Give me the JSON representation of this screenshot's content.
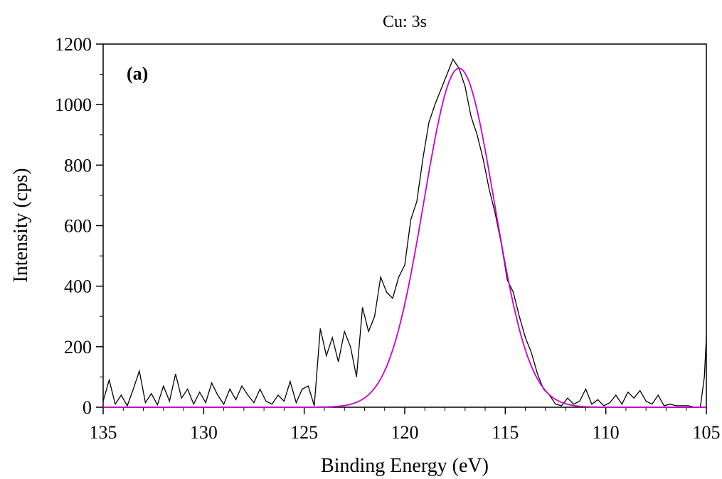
{
  "chart_data": {
    "type": "line",
    "title": "Cu: 3s",
    "xlabel": "Binding Energy (eV)",
    "ylabel": "Intensity (cps)",
    "panel_label": "(a)",
    "xlim": [
      135,
      105
    ],
    "ylim": [
      0,
      1200
    ],
    "x_reversed": true,
    "x_ticks": [
      135,
      130,
      125,
      120,
      115,
      110,
      105
    ],
    "y_ticks": [
      0,
      200,
      400,
      600,
      800,
      1000,
      1200
    ],
    "x_tick_labels": [
      "135",
      "130",
      "125",
      "120",
      "115",
      "110",
      "105"
    ],
    "y_tick_labels": [
      "0",
      "200",
      "400",
      "600",
      "800",
      "1000",
      "1200"
    ],
    "grid": false,
    "series": [
      {
        "color": "#000000",
        "x": [
          135.0,
          134.7,
          134.4,
          134.1,
          133.8,
          133.5,
          133.2,
          132.9,
          132.6,
          132.3,
          132.0,
          131.7,
          131.4,
          131.1,
          130.8,
          130.5,
          130.2,
          129.9,
          129.6,
          129.3,
          129.0,
          128.7,
          128.4,
          128.1,
          127.8,
          127.5,
          127.2,
          126.9,
          126.6,
          126.3,
          126.0,
          125.7,
          125.4,
          125.1,
          124.8,
          124.5,
          124.2,
          123.9,
          123.6,
          123.3,
          123.0,
          122.7,
          122.4,
          122.1,
          121.8,
          121.5,
          121.2,
          120.9,
          120.6,
          120.3,
          120.0,
          119.7,
          119.4,
          119.1,
          118.8,
          118.5,
          118.2,
          117.9,
          117.6,
          117.3,
          117.0,
          116.7,
          116.4,
          116.1,
          115.8,
          115.5,
          115.2,
          114.9,
          114.6,
          114.3,
          114.0,
          113.7,
          113.4,
          113.1,
          112.8,
          112.5,
          112.2,
          111.9,
          111.6,
          111.3,
          111.0,
          110.7,
          110.4,
          110.1,
          109.8,
          109.5,
          109.2,
          108.9,
          108.6,
          108.3,
          108.0,
          107.7,
          107.4,
          107.1,
          106.8,
          106.5,
          106.2,
          105.9,
          105.6,
          105.3,
          105.1,
          105.0
        ],
        "y": [
          20,
          90,
          10,
          40,
          5,
          60,
          120,
          15,
          45,
          8,
          70,
          20,
          110,
          30,
          60,
          10,
          50,
          15,
          80,
          40,
          10,
          60,
          25,
          70,
          40,
          15,
          60,
          20,
          10,
          40,
          20,
          85,
          15,
          60,
          70,
          5,
          260,
          170,
          230,
          150,
          250,
          200,
          100,
          330,
          250,
          300,
          430,
          380,
          360,
          430,
          470,
          620,
          680,
          820,
          940,
          1000,
          1050,
          1100,
          1150,
          1120,
          1060,
          960,
          900,
          820,
          720,
          640,
          540,
          420,
          380,
          300,
          230,
          180,
          110,
          60,
          40,
          10,
          5,
          30,
          10,
          20,
          60,
          10,
          25,
          5,
          15,
          40,
          10,
          50,
          30,
          55,
          20,
          10,
          40,
          5,
          10,
          5,
          5,
          5,
          0,
          0,
          100,
          230
        ]
      },
      {
        "color": "#cc00cc",
        "fit": "gaussian",
        "center": 117.3,
        "amplitude": 1120,
        "sigma": 1.75
      }
    ]
  }
}
